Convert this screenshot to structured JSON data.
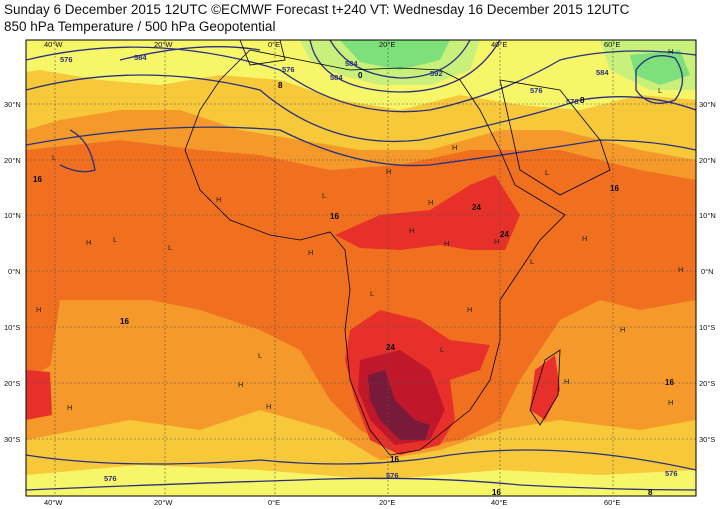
{
  "header": {
    "title": "Sunday 6 December 2015 12UTC ©ECMWF Forecast t+240 VT: Wednesday 16 December 2015 12UTC",
    "subtitle": "850 hPa Temperature / 500 hPa Geopotential"
  },
  "axes": {
    "lon_top": [
      "40°W",
      "20°W",
      "0°E",
      "20°E",
      "40°E",
      "60°E"
    ],
    "lon_bottom": [
      "40°W",
      "20°W",
      "0°E",
      "20°E",
      "40°E",
      "60°E"
    ],
    "lat_left": [
      "30°N",
      "20°N",
      "10°N",
      "0°N",
      "10°S",
      "20°S",
      "30°S"
    ],
    "lat_right": [
      "30°N",
      "20°N",
      "10°N",
      "0°N",
      "10°S",
      "20°S",
      "30°S"
    ]
  },
  "contour_labels": {
    "geopotential": [
      "576",
      "584",
      "576",
      "584",
      "584",
      "592",
      "584",
      "576",
      "576",
      "576",
      "576",
      "576"
    ],
    "temperature": [
      "0",
      "8",
      "16",
      "8",
      "16",
      "16",
      "24",
      "24",
      "16",
      "16",
      "24",
      "16",
      "16",
      "8"
    ]
  },
  "pressure_marks": {
    "highs": [
      "H",
      "H",
      "H",
      "H",
      "H",
      "H",
      "H",
      "H",
      "H",
      "H",
      "H",
      "H",
      "H",
      "H",
      "H",
      "H",
      "H",
      "H",
      "H",
      "H"
    ],
    "lows": [
      "L",
      "L",
      "L",
      "L",
      "L",
      "L",
      "L",
      "L",
      "L",
      "L"
    ]
  },
  "colors": {
    "cold_green": "#7de07a",
    "lime": "#c8f07a",
    "yellow": "#f7f568",
    "yellow_orange": "#f7c83a",
    "orange": "#f59a2a",
    "dark_orange": "#f07020",
    "red": "#e8302a",
    "dark_red": "#c0182a",
    "maroon": "#7a1a3a",
    "contour": "#2a3080",
    "coast": "#000000",
    "grid": "#555555"
  }
}
